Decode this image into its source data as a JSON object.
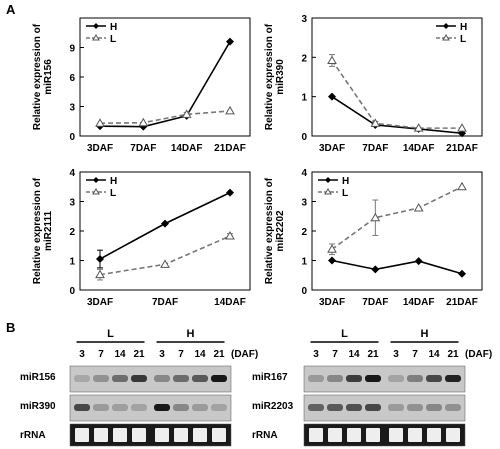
{
  "panels": {
    "a": "A",
    "b": "B"
  },
  "chart_data": [
    {
      "type": "line",
      "ylabel": "Relative expression of miR156",
      "categories": [
        "3DAF",
        "7DAF",
        "14DAF",
        "21DAF"
      ],
      "ylim": [
        0,
        12
      ],
      "yticks": [
        "0",
        "3",
        "6",
        "9"
      ],
      "legend": "top-left",
      "series": [
        {
          "name": "H",
          "marker": "diamond",
          "dash": false,
          "values": [
            1.0,
            0.95,
            2.05,
            9.6
          ],
          "err": [
            0,
            0,
            0,
            0
          ]
        },
        {
          "name": "L",
          "marker": "triangle",
          "dash": true,
          "values": [
            1.3,
            1.35,
            2.2,
            2.55
          ],
          "err": [
            0,
            0,
            0.2,
            0
          ]
        }
      ]
    },
    {
      "type": "line",
      "ylabel": "Relative expression of miR390",
      "categories": [
        "3DAF",
        "7DAF",
        "14DAF",
        "21DAF"
      ],
      "ylim": [
        0,
        3
      ],
      "yticks": [
        "0",
        "1",
        "2",
        "3"
      ],
      "legend": "top-right",
      "series": [
        {
          "name": "H",
          "marker": "diamond",
          "dash": false,
          "values": [
            1.0,
            0.28,
            0.18,
            0.07
          ],
          "err": [
            0,
            0,
            0,
            0
          ]
        },
        {
          "name": "L",
          "marker": "triangle",
          "dash": true,
          "values": [
            1.92,
            0.32,
            0.2,
            0.2
          ],
          "err": [
            0.15,
            0.05,
            0,
            0
          ]
        }
      ]
    },
    {
      "type": "line",
      "ylabel": "Relative expression of miR2111",
      "categories": [
        "3DAF",
        "7DAF",
        "14DAF"
      ],
      "ylim": [
        0,
        4
      ],
      "yticks": [
        "0",
        "1",
        "2",
        "3",
        "4"
      ],
      "legend": "top-left",
      "series": [
        {
          "name": "H",
          "marker": "diamond",
          "dash": false,
          "values": [
            1.05,
            2.25,
            3.3
          ],
          "err": [
            0.3,
            0,
            0
          ]
        },
        {
          "name": "L",
          "marker": "triangle",
          "dash": true,
          "values": [
            0.52,
            0.87,
            1.83
          ],
          "err": [
            0.18,
            0,
            0.08
          ]
        }
      ]
    },
    {
      "type": "line",
      "ylabel": "Relative expression of miR2202",
      "categories": [
        "3DAF",
        "7DAF",
        "14DAF",
        "21DAF"
      ],
      "ylim": [
        0,
        4
      ],
      "yticks": [
        "0",
        "1",
        "2",
        "3",
        "4"
      ],
      "legend": "top-left",
      "series": [
        {
          "name": "H",
          "marker": "diamond",
          "dash": false,
          "values": [
            1.0,
            0.7,
            0.98,
            0.55
          ],
          "err": [
            0,
            0,
            0,
            0
          ]
        },
        {
          "name": "L",
          "marker": "triangle",
          "dash": true,
          "values": [
            1.38,
            2.45,
            2.78,
            3.5
          ],
          "err": [
            0.18,
            0.6,
            0,
            0
          ]
        }
      ]
    }
  ],
  "blots": [
    {
      "groups": [
        "L",
        "H"
      ],
      "lanes": [
        "3",
        "7",
        "14",
        "21",
        "3",
        "7",
        "14",
        "21"
      ],
      "unit": "(DAF)",
      "rows": [
        {
          "label": "miR156",
          "intensity": [
            0.18,
            0.3,
            0.5,
            0.78,
            0.35,
            0.5,
            0.6,
            0.95
          ]
        },
        {
          "label": "miR390",
          "intensity": [
            0.7,
            0.25,
            0.22,
            0.2,
            0.95,
            0.35,
            0.25,
            0.2
          ]
        },
        {
          "label": "rRNA",
          "intensity": [
            1,
            1,
            1,
            1,
            1,
            1,
            1,
            1
          ]
        }
      ]
    },
    {
      "groups": [
        "L",
        "H"
      ],
      "lanes": [
        "3",
        "7",
        "14",
        "21",
        "3",
        "7",
        "14",
        "21"
      ],
      "unit": "(DAF)",
      "rows": [
        {
          "label": "miR167",
          "intensity": [
            0.25,
            0.35,
            0.75,
            0.95,
            0.2,
            0.4,
            0.7,
            0.9
          ]
        },
        {
          "label": "miR2203",
          "intensity": [
            0.55,
            0.6,
            0.65,
            0.7,
            0.25,
            0.3,
            0.35,
            0.3
          ]
        },
        {
          "label": "rRNA",
          "intensity": [
            1,
            1,
            1,
            1,
            1,
            1,
            1,
            1
          ]
        }
      ]
    }
  ]
}
